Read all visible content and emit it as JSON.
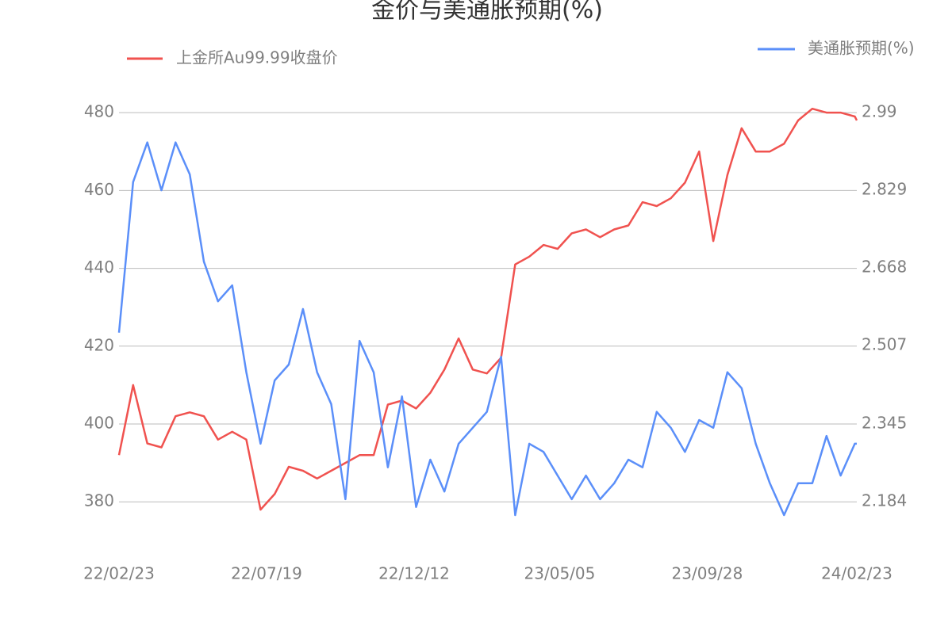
{
  "chart_data": {
    "type": "line",
    "title": "金价与美通胀预期(%)",
    "x": [
      "22/02/23",
      "22/03/09",
      "22/03/23",
      "22/04/06",
      "22/04/20",
      "22/05/04",
      "22/05/18",
      "22/06/01",
      "22/06/15",
      "22/06/29",
      "22/07/13",
      "22/07/27",
      "22/08/10",
      "22/08/24",
      "22/09/07",
      "22/09/21",
      "22/10/05",
      "22/10/19",
      "22/11/02",
      "22/11/16",
      "22/11/30",
      "22/12/14",
      "22/12/28",
      "23/01/11",
      "23/01/25",
      "23/02/08",
      "23/02/22",
      "23/03/08",
      "23/03/22",
      "23/04/05",
      "23/04/19",
      "23/05/03",
      "23/05/17",
      "23/05/31",
      "23/06/14",
      "23/06/28",
      "23/07/12",
      "23/07/26",
      "23/08/09",
      "23/08/23",
      "23/09/06",
      "23/09/20",
      "23/10/04",
      "23/10/18",
      "23/11/01",
      "23/11/15",
      "23/11/29",
      "23/12/13",
      "23/12/27",
      "24/01/10",
      "24/01/24",
      "24/02/07",
      "24/02/21",
      "24/02/23"
    ],
    "series": [
      {
        "name": "上金所Au99.99收盘价",
        "color": "#f0524f",
        "axis": "y",
        "values": [
          392,
          410,
          395,
          394,
          402,
          403,
          402,
          396,
          398,
          396,
          378,
          382,
          389,
          388,
          386,
          388,
          390,
          392,
          392,
          405,
          406,
          404,
          408,
          414,
          422,
          414,
          413,
          417,
          441,
          443,
          446,
          445,
          449,
          450,
          448,
          450,
          451,
          457,
          456,
          458,
          462,
          470,
          447,
          464,
          476,
          470,
          470,
          472,
          478,
          481,
          480,
          480,
          479,
          478
        ]
      },
      {
        "name": "美通胀预期(%)",
        "color": "#5b8ff9",
        "axis": "y2",
        "values": [
          2.534,
          2.846,
          2.928,
          2.829,
          2.928,
          2.862,
          2.681,
          2.599,
          2.632,
          2.452,
          2.304,
          2.435,
          2.468,
          2.583,
          2.452,
          2.386,
          2.189,
          2.517,
          2.452,
          2.255,
          2.402,
          2.173,
          2.271,
          2.205,
          2.304,
          2.337,
          2.37,
          2.484,
          2.156,
          2.304,
          2.287,
          2.238,
          2.189,
          2.238,
          2.189,
          2.222,
          2.271,
          2.255,
          2.37,
          2.337,
          2.287,
          2.353,
          2.337,
          2.452,
          2.419,
          2.304,
          2.222,
          2.156,
          2.222,
          2.222,
          2.32,
          2.238,
          2.304,
          2.304
        ]
      }
    ],
    "xlim": [
      "22/02/23",
      "24/02/23"
    ],
    "xticks": [
      "22/02/23",
      "22/07/19",
      "22/12/12",
      "23/05/05",
      "23/09/28",
      "24/02/23"
    ],
    "ylim": [
      366,
      490
    ],
    "yticks": [
      380,
      400,
      420,
      440,
      460,
      480
    ],
    "y2lim": [
      2.0707,
      3.0704
    ],
    "y2ticks": [
      2.184,
      2.345,
      2.507,
      2.668,
      2.829,
      2.99
    ],
    "grid": true
  }
}
